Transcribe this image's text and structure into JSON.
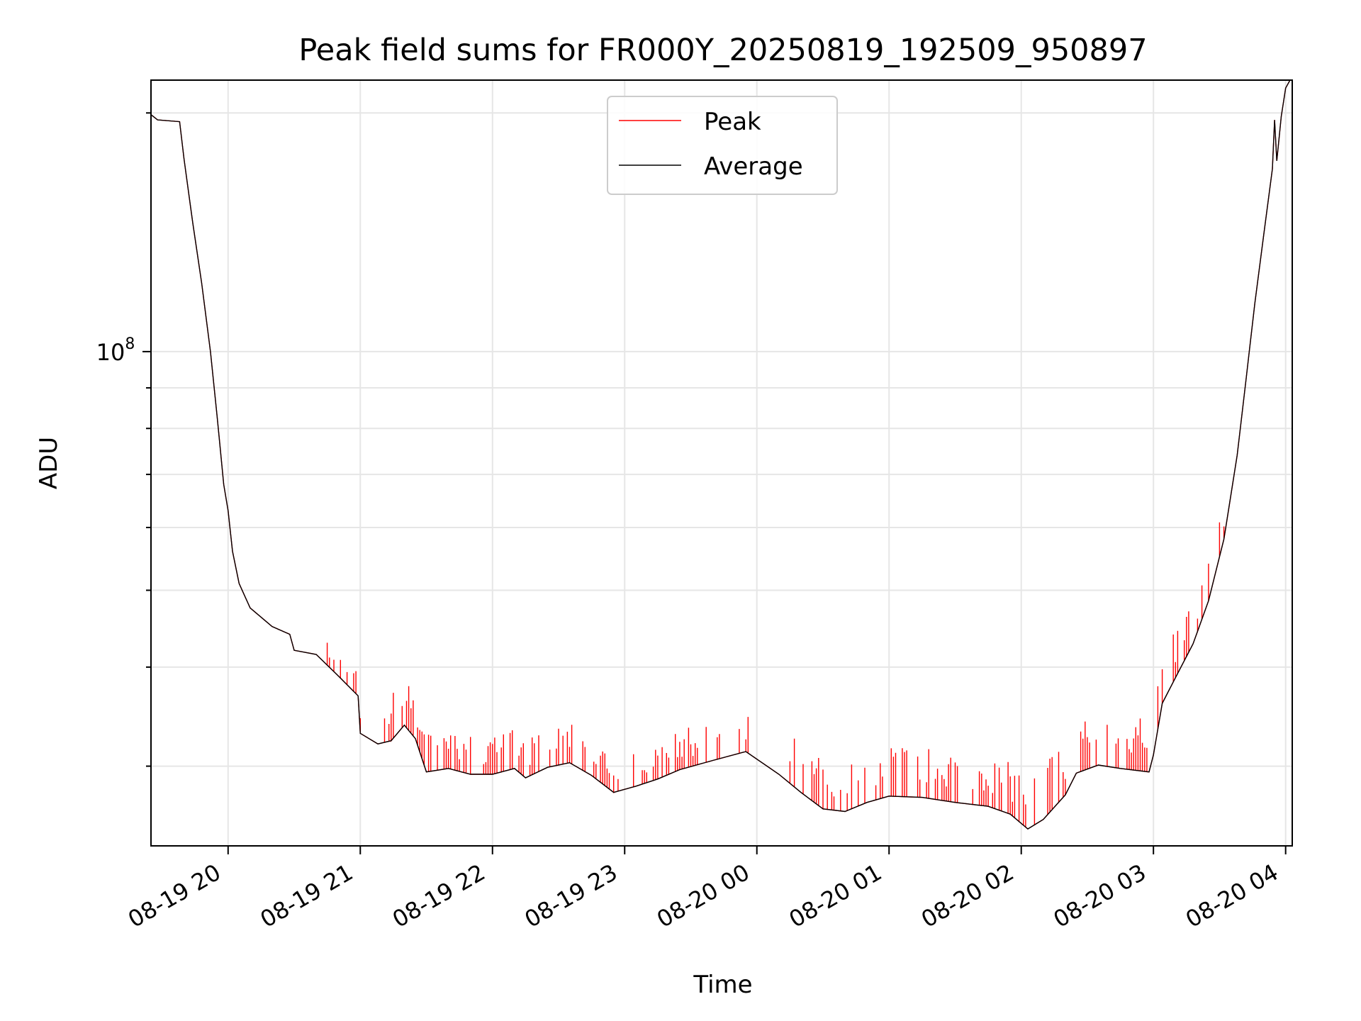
{
  "chart_data": {
    "type": "line",
    "title": "Peak field sums for FR000Y_20250819_192509_950897",
    "xlabel": "Time",
    "ylabel": "ADU",
    "y_scale": "log",
    "xlim": [
      "2025-08-19 19:25",
      "2025-08-20 04:03"
    ],
    "ylim": [
      23800000,
      220000000
    ],
    "grid": true,
    "legend_position": "top-center",
    "x_tick_labels": [
      "08-19 20",
      "08-19 21",
      "08-19 22",
      "08-19 23",
      "08-20 00",
      "08-20 01",
      "08-20 02",
      "08-20 03",
      "08-20 04"
    ],
    "x_tick_times": [
      "2025-08-19 20:00",
      "2025-08-19 21:00",
      "2025-08-19 22:00",
      "2025-08-19 23:00",
      "2025-08-20 00:00",
      "2025-08-20 01:00",
      "2025-08-20 02:00",
      "2025-08-20 03:00",
      "2025-08-20 04:00"
    ],
    "y_tick_labels": [
      {
        "base": "10",
        "exp": "8",
        "value": 100000000
      }
    ],
    "series": [
      {
        "name": "Peak",
        "color": "#ff0000",
        "role": "peak"
      },
      {
        "name": "Average",
        "color": "#000000",
        "role": "average"
      }
    ],
    "average_points": [
      [
        "2025-08-19 19:25",
        199000000
      ],
      [
        "2025-08-19 19:28",
        196000000
      ],
      [
        "2025-08-19 19:38",
        195000000
      ],
      [
        "2025-08-19 19:40",
        175000000
      ],
      [
        "2025-08-19 19:44",
        145000000
      ],
      [
        "2025-08-19 19:48",
        122000000
      ],
      [
        "2025-08-19 19:52",
        100000000
      ],
      [
        "2025-08-19 19:55",
        83000000
      ],
      [
        "2025-08-19 19:58",
        68000000
      ],
      [
        "2025-08-19 20:00",
        63000000
      ],
      [
        "2025-08-19 20:02",
        56000000
      ],
      [
        "2025-08-19 20:05",
        51000000
      ],
      [
        "2025-08-19 20:10",
        47500000
      ],
      [
        "2025-08-19 20:20",
        45000000
      ],
      [
        "2025-08-19 20:28",
        44000000
      ],
      [
        "2025-08-19 20:30",
        42000000
      ],
      [
        "2025-08-19 20:40",
        41500000
      ],
      [
        "2025-08-19 20:50",
        39000000
      ],
      [
        "2025-08-19 20:59",
        36800000
      ],
      [
        "2025-08-19 21:00",
        33000000
      ],
      [
        "2025-08-19 21:08",
        32000000
      ],
      [
        "2025-08-19 21:14",
        32300000
      ],
      [
        "2025-08-19 21:20",
        33800000
      ],
      [
        "2025-08-19 21:25",
        32500000
      ],
      [
        "2025-08-19 21:30",
        29500000
      ],
      [
        "2025-08-19 21:40",
        29800000
      ],
      [
        "2025-08-19 21:50",
        29300000
      ],
      [
        "2025-08-19 22:00",
        29300000
      ],
      [
        "2025-08-19 22:10",
        29800000
      ],
      [
        "2025-08-19 22:15",
        29000000
      ],
      [
        "2025-08-19 22:25",
        29900000
      ],
      [
        "2025-08-19 22:35",
        30300000
      ],
      [
        "2025-08-19 22:45",
        29200000
      ],
      [
        "2025-08-19 22:55",
        27800000
      ],
      [
        "2025-08-19 23:05",
        28300000
      ],
      [
        "2025-08-19 23:15",
        28900000
      ],
      [
        "2025-08-19 23:25",
        29700000
      ],
      [
        "2025-08-19 23:40",
        30500000
      ],
      [
        "2025-08-19 23:55",
        31300000
      ],
      [
        "2025-08-20 00:10",
        29300000
      ],
      [
        "2025-08-20 00:20",
        27800000
      ],
      [
        "2025-08-20 00:30",
        26500000
      ],
      [
        "2025-08-20 00:40",
        26300000
      ],
      [
        "2025-08-20 00:50",
        27000000
      ],
      [
        "2025-08-20 01:00",
        27500000
      ],
      [
        "2025-08-20 01:15",
        27400000
      ],
      [
        "2025-08-20 01:30",
        27000000
      ],
      [
        "2025-08-20 01:45",
        26700000
      ],
      [
        "2025-08-20 01:55",
        26100000
      ],
      [
        "2025-08-20 02:03",
        25000000
      ],
      [
        "2025-08-20 02:10",
        25700000
      ],
      [
        "2025-08-20 02:20",
        27600000
      ],
      [
        "2025-08-20 02:25",
        29400000
      ],
      [
        "2025-08-20 02:35",
        30100000
      ],
      [
        "2025-08-20 02:45",
        29800000
      ],
      [
        "2025-08-20 02:58",
        29500000
      ],
      [
        "2025-08-20 03:00",
        31000000
      ],
      [
        "2025-08-20 03:04",
        36000000
      ],
      [
        "2025-08-20 03:10",
        38800000
      ],
      [
        "2025-08-20 03:18",
        42800000
      ],
      [
        "2025-08-20 03:25",
        48500000
      ],
      [
        "2025-08-20 03:32",
        58000000
      ],
      [
        "2025-08-20 03:38",
        74000000
      ],
      [
        "2025-08-20 03:42",
        92000000
      ],
      [
        "2025-08-20 03:46",
        115000000
      ],
      [
        "2025-08-20 03:50",
        140000000
      ],
      [
        "2025-08-20 03:54",
        170000000
      ],
      [
        "2025-08-20 03:55",
        196000000
      ],
      [
        "2025-08-20 03:56",
        174000000
      ],
      [
        "2025-08-20 03:58",
        198000000
      ],
      [
        "2025-08-20 04:00",
        215000000
      ],
      [
        "2025-08-20 04:02",
        220000000
      ]
    ],
    "peak_spike_segments": [
      {
        "from": "2025-08-19 20:45",
        "to": "2025-08-19 21:00",
        "height": 0.03
      },
      {
        "from": "2025-08-19 21:05",
        "to": "2025-08-19 21:30",
        "height": 0.06
      },
      {
        "from": "2025-08-19 21:30",
        "to": "2025-08-20 00:00",
        "height": 0.05
      },
      {
        "from": "2025-08-20 00:15",
        "to": "2025-08-20 02:10",
        "height": 0.065
      },
      {
        "from": "2025-08-20 02:10",
        "to": "2025-08-20 02:59",
        "height": 0.075
      },
      {
        "from": "2025-08-20 03:00",
        "to": "2025-08-20 03:35",
        "height": 0.06
      }
    ]
  }
}
